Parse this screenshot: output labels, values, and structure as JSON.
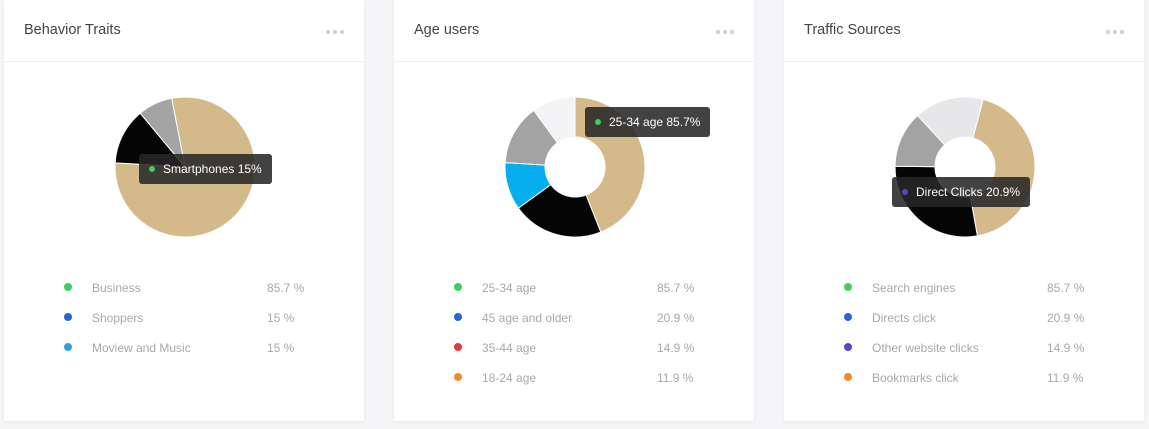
{
  "cards": [
    {
      "title": "Behavior Traits",
      "tooltip": {
        "text": "Smartphones 15%",
        "dot_color": "#3ecf5f"
      },
      "chart_data": {
        "type": "pie",
        "slices": [
          {
            "value": 79,
            "color": "#d4b98a"
          },
          {
            "value": 13,
            "color": "#050505"
          },
          {
            "value": 8,
            "color": "#a3a3a3"
          }
        ],
        "donut": true
      },
      "legend": [
        {
          "label": "Business",
          "value": "85.7 %",
          "color": "#3ecf5f"
        },
        {
          "label": "Shoppers",
          "value": "15 %",
          "color": "#2566dd"
        },
        {
          "label": "Moview and Music",
          "value": "15 %",
          "color": "#2fa3d8"
        }
      ]
    },
    {
      "title": "Age users",
      "tooltip": {
        "text": "25-34 age 85.7%",
        "dot_color": "#3ecf5f"
      },
      "chart_data": {
        "type": "pie",
        "slices": [
          {
            "value": 44,
            "color": "#d4b98a"
          },
          {
            "value": 21,
            "color": "#050505"
          },
          {
            "value": 11,
            "color": "#06aeef"
          },
          {
            "value": 14,
            "color": "#a3a3a3"
          },
          {
            "value": 10,
            "color": "#f3f3f6"
          }
        ],
        "donut": true
      },
      "legend": [
        {
          "label": "25-34 age",
          "value": "85.7 %",
          "color": "#3ecf5f"
        },
        {
          "label": "45 age and older",
          "value": "20.9 %",
          "color": "#2566dd"
        },
        {
          "label": "35-44 age",
          "value": "14.9 %",
          "color": "#e8363a"
        },
        {
          "label": "18-24 age",
          "value": "11.9 %",
          "color": "#f08a24"
        }
      ]
    },
    {
      "title": "Traffic Sources",
      "tooltip": {
        "text": "Direct Clicks 20.9%",
        "dot_color": "#5746c8"
      },
      "chart_data": {
        "type": "pie",
        "slices": [
          {
            "value": 43,
            "color": "#d4b98a"
          },
          {
            "value": 28,
            "color": "#050505"
          },
          {
            "value": 13,
            "color": "#a3a3a3"
          },
          {
            "value": 16,
            "color": "#e7e7ea"
          }
        ],
        "donut": true
      },
      "legend": [
        {
          "label": "Search engines",
          "value": "85.7 %",
          "color": "#3ecf5f"
        },
        {
          "label": "Directs click",
          "value": "20.9 %",
          "color": "#2566dd"
        },
        {
          "label": "Other website clicks",
          "value": "14.9 %",
          "color": "#5746c8"
        },
        {
          "label": "Bookmarks click",
          "value": "11.9 %",
          "color": "#f08a24"
        }
      ]
    }
  ]
}
